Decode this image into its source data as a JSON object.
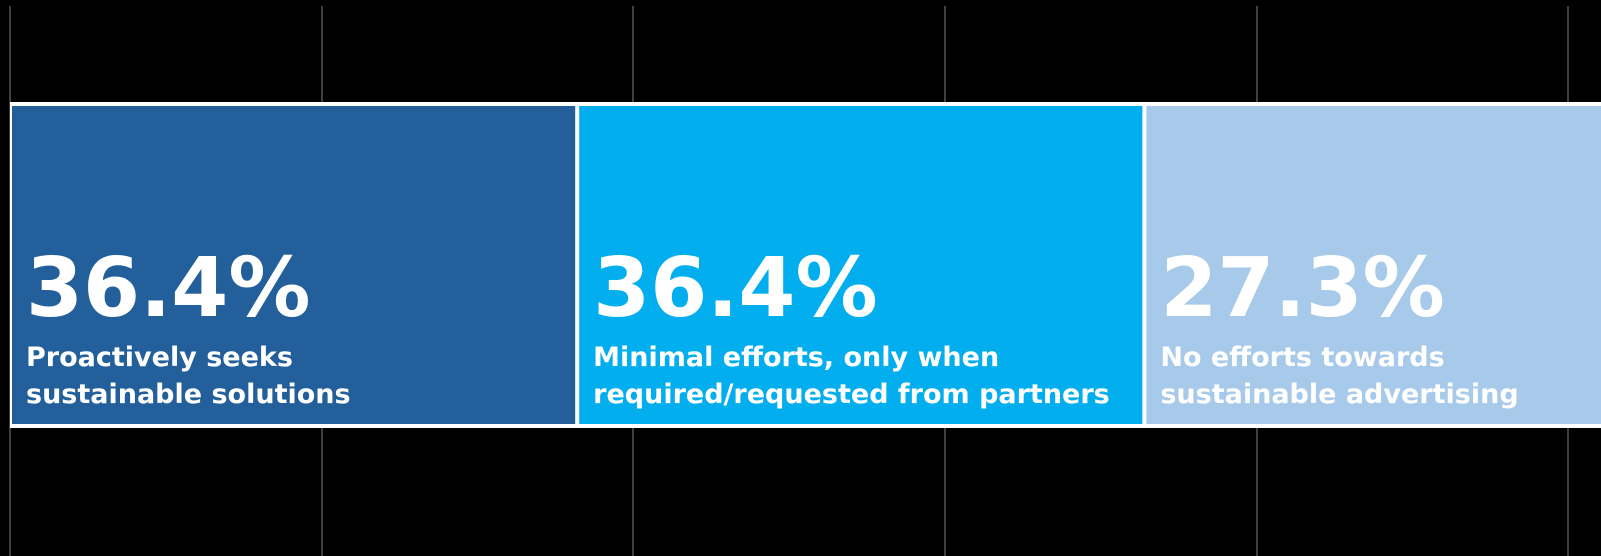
{
  "chart_data": {
    "type": "bar",
    "orientation": "horizontal",
    "stacked": true,
    "xlim": [
      0,
      100
    ],
    "grid": true,
    "gridlines": [
      0,
      20,
      40,
      60,
      80,
      100
    ],
    "legend": "none",
    "title": "",
    "xlabel": "",
    "ylabel": "",
    "series": [
      {
        "value": 36.4,
        "value_label": "36.4%",
        "label_lines": [
          "Proactively seeks",
          "sustainable solutions"
        ],
        "color": "#225f9b"
      },
      {
        "value": 36.4,
        "value_label": "36.4%",
        "label_lines": [
          "Minimal efforts, only when",
          "required/requested from partners"
        ],
        "color": "#03aeee"
      },
      {
        "value": 27.3,
        "value_label": "27.3%",
        "label_lines": [
          "No efforts towards",
          "sustainable advertising"
        ],
        "color": "#a7c9ea"
      }
    ],
    "colors": {
      "background": "#000000",
      "grid": "#555555",
      "separator": "#ffffff"
    }
  }
}
